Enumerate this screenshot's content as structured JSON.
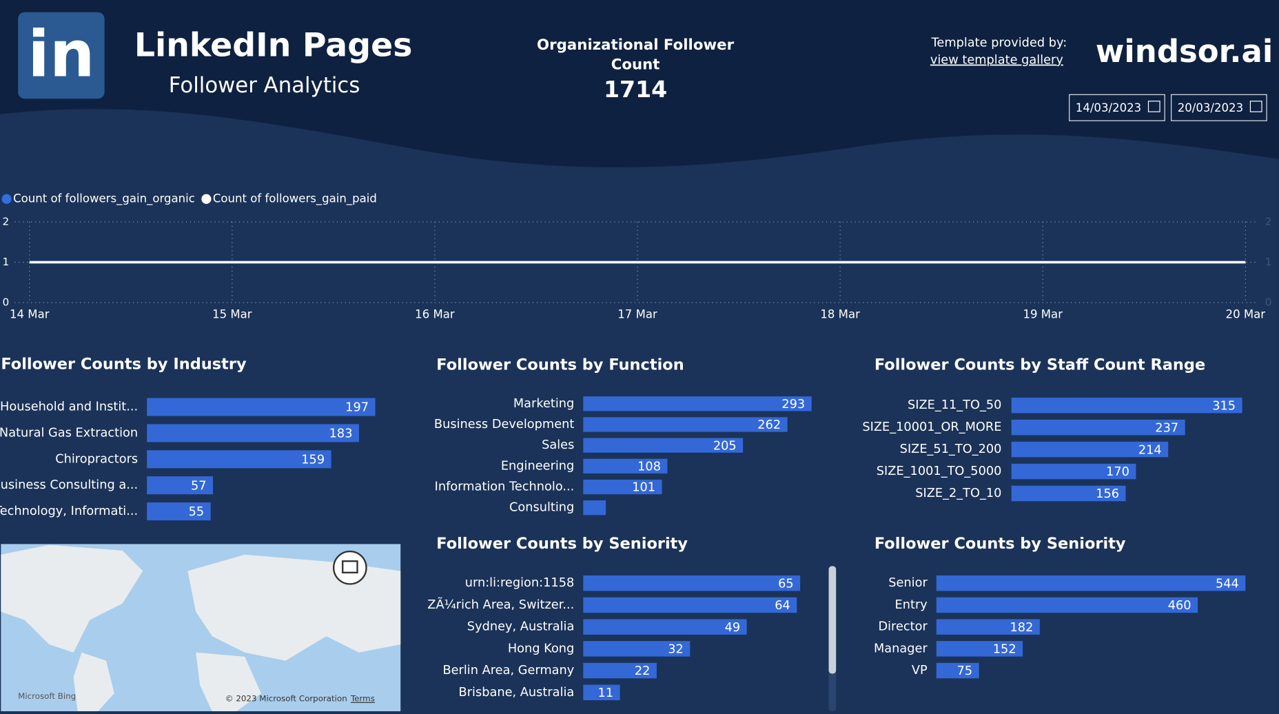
{
  "header": {
    "logo": "in",
    "title": "LinkedIn Pages",
    "subtitle": "Follower Analytics",
    "kpi_label": "Organizational Follower Count",
    "kpi_value": 1714,
    "template_text": "Template provided by:",
    "template_link": "view template gallery",
    "brand": "windsor.ai",
    "date_from": "14/03/2023",
    "date_to": "20/03/2023"
  },
  "map": {
    "provider": "Microsoft Bing",
    "copyright": "© 2023 Microsoft Corporation",
    "terms": "Terms"
  },
  "chart_data": [
    {
      "type": "line",
      "x": [
        "14 Mar",
        "15 Mar",
        "16 Mar",
        "17 Mar",
        "18 Mar",
        "19 Mar",
        "20 Mar"
      ],
      "series": [
        {
          "name": "Count of followers_gain_organic",
          "color": "#2f6fe0",
          "values": [
            1,
            1,
            1,
            1,
            1,
            1,
            1
          ]
        },
        {
          "name": "Count of followers_gain_paid",
          "color": "#ffffff",
          "values": [
            1,
            1,
            1,
            1,
            1,
            1,
            1
          ]
        }
      ],
      "ylim": [
        0,
        2
      ],
      "yticks": [
        0,
        1,
        2
      ],
      "y2lim": [
        0,
        2
      ],
      "y2ticks": [
        0,
        1,
        2
      ],
      "grid": true
    },
    {
      "type": "bar",
      "title": "Follower Counts by Industry",
      "color": "#3368d6",
      "categories": [
        "Household and Instit...",
        "Natural Gas Extraction",
        "Chiropractors",
        "Business Consulting a...",
        "Technology, Informati..."
      ],
      "values": [
        197,
        183,
        159,
        57,
        55
      ]
    },
    {
      "type": "bar",
      "title": "Follower Counts by Function",
      "color": "#3368d6",
      "categories": [
        "Marketing",
        "Business Development",
        "Sales",
        "Engineering",
        "Information Technolo...",
        "Consulting"
      ],
      "values": [
        293,
        262,
        205,
        108,
        101,
        29
      ]
    },
    {
      "type": "bar",
      "title": "Follower Counts by Staff Count Range",
      "color": "#3368d6",
      "categories": [
        "SIZE_11_TO_50",
        "SIZE_10001_OR_MORE",
        "SIZE_51_TO_200",
        "SIZE_1001_TO_5000",
        "SIZE_2_TO_10"
      ],
      "values": [
        315,
        237,
        214,
        170,
        156
      ]
    },
    {
      "type": "bar",
      "title": "Follower Counts by Seniority",
      "color": "#3368d6",
      "categories": [
        "urn:li:region:1158",
        "ZÃ¼rich Area, Switzer...",
        "Sydney, Australia",
        "Hong Kong",
        "Berlin Area, Germany",
        "Brisbane, Australia"
      ],
      "values": [
        65,
        64,
        49,
        32,
        22,
        11
      ]
    },
    {
      "type": "bar",
      "title": "Follower Counts by Seniority",
      "color": "#3368d6",
      "categories": [
        "Senior",
        "Entry",
        "Director",
        "Manager",
        "VP"
      ],
      "values": [
        544,
        460,
        182,
        152,
        75
      ]
    }
  ]
}
